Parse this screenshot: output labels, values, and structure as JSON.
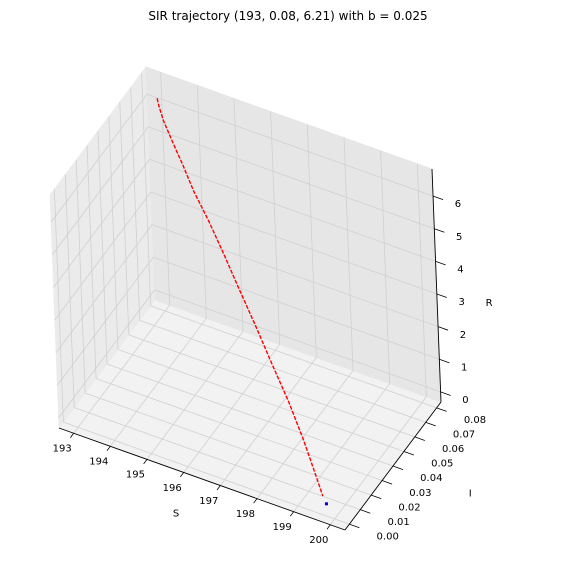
{
  "chart_data": {
    "type": "line",
    "projection": "3d",
    "title": "SIR trajectory (193, 0.08, 6.21) with b = 0.025",
    "xlabel": "S",
    "ylabel": "I",
    "zlabel": "R",
    "xlim": [
      192.6,
      200.4
    ],
    "ylim": [
      -0.004,
      0.084
    ],
    "zlim": [
      -0.31,
      6.83
    ],
    "grid": true,
    "x_ticks": [
      "193",
      "194",
      "195",
      "196",
      "197",
      "198",
      "199",
      "200"
    ],
    "y_ticks": [
      "0.00",
      "0.01",
      "0.02",
      "0.03",
      "0.04",
      "0.05",
      "0.06",
      "0.07",
      "0.08"
    ],
    "z_ticks": [
      "0",
      "1",
      "2",
      "3",
      "4",
      "5",
      "6"
    ],
    "series": [
      {
        "color": "#ff0000",
        "style": "dashed",
        "points": [
          [
            193.0,
            0.08,
            6.21
          ],
          [
            193.2,
            0.075,
            6.28
          ],
          [
            193.5,
            0.069,
            6.22
          ],
          [
            193.9,
            0.063,
            6.05
          ],
          [
            194.4,
            0.056,
            5.8
          ],
          [
            194.9,
            0.049,
            5.5
          ],
          [
            195.5,
            0.042,
            5.15
          ],
          [
            196.1,
            0.035,
            4.7
          ],
          [
            196.7,
            0.028,
            4.2
          ],
          [
            197.3,
            0.022,
            3.6
          ],
          [
            197.9,
            0.016,
            2.95
          ],
          [
            198.5,
            0.011,
            2.2
          ],
          [
            199.0,
            0.007,
            1.4
          ],
          [
            199.4,
            0.004,
            0.6
          ],
          [
            199.6,
            0.003,
            0.1
          ]
        ]
      },
      {
        "color": "#0000cc",
        "style": "marker",
        "points": [
          [
            199.75,
            0.0012,
            0.0
          ]
        ]
      }
    ]
  }
}
